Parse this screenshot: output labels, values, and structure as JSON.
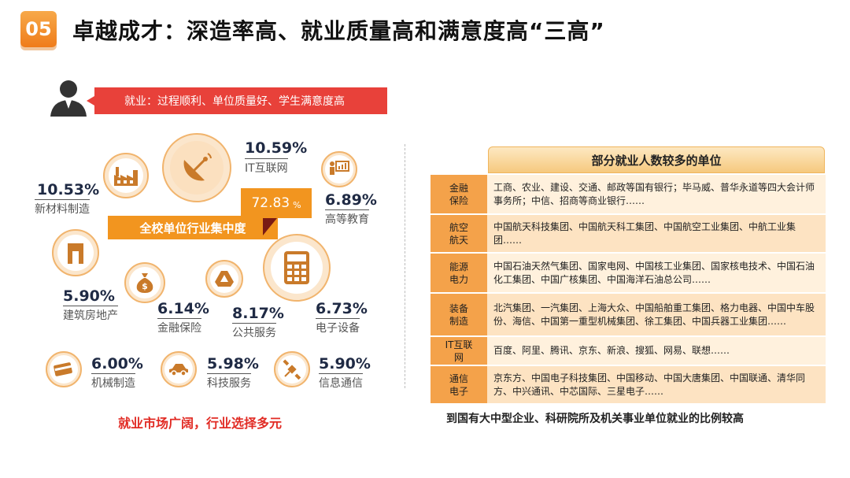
{
  "header": {
    "badge": "05",
    "title": "卓越成才：深造率高、就业质量高和满意度高“三高”"
  },
  "banner": {
    "text": "就业：过程顺利、单位质量好、学生满意度高"
  },
  "industries": [
    {
      "id": "it",
      "percent": "10.59%",
      "label": "IT互联网"
    },
    {
      "id": "materials",
      "percent": "10.53%",
      "label": "新材料制造"
    },
    {
      "id": "education",
      "percent": "6.89%",
      "label": "高等教育"
    },
    {
      "id": "realestate",
      "percent": "5.90%",
      "label": "建筑房地产"
    },
    {
      "id": "finance",
      "percent": "6.14%",
      "label": "金融保险"
    },
    {
      "id": "public",
      "percent": "8.17%",
      "label": "公共服务"
    },
    {
      "id": "electronics",
      "percent": "6.73%",
      "label": "电子设备"
    },
    {
      "id": "machinery",
      "percent": "6.00%",
      "label": "机械制造"
    },
    {
      "id": "techservice",
      "percent": "5.98%",
      "label": "科技服务"
    },
    {
      "id": "telecom",
      "percent": "5.90%",
      "label": "信息通信"
    }
  ],
  "concentration": {
    "label": "全校单位行业集中度",
    "value": "72.83",
    "unit": "%"
  },
  "left_caption": "就业市场广阔，行业选择多元",
  "table": {
    "title": "部分就业人数较多的单位",
    "rows": [
      {
        "category": [
          "金融",
          "保险"
        ],
        "units": "工商、农业、建设、交通、邮政等国有银行；毕马威、普华永道等四大会计师事务所；中信、招商等商业银行……"
      },
      {
        "category": [
          "航空",
          "航天"
        ],
        "units": "中国航天科技集团、中国航天科工集团、中国航空工业集团、中航工业集团……"
      },
      {
        "category": [
          "能源",
          "电力"
        ],
        "units": "中国石油天然气集团、国家电网、中国核工业集团、国家核电技术、中国石油化工集团、中国广核集团、中国海洋石油总公司……"
      },
      {
        "category": [
          "装备",
          "制造"
        ],
        "units": "北汽集团、一汽集团、上海大众、中国船舶重工集团、格力电器、中国中车股份、海信、中国第一重型机械集团、徐工集团、中国兵器工业集团……"
      },
      {
        "category": [
          "IT互联",
          "网"
        ],
        "units": "百度、阿里、腾讯、京东、新浪、搜狐、网易、联想……"
      },
      {
        "category": [
          "通信",
          "电子"
        ],
        "units": "京东方、中国电子科技集团、中国移动、中国大唐集团、中国联通、清华同方、中兴通讯、中芯国际、三星电子……"
      }
    ]
  },
  "right_caption": "到国有大中型企业、科研院所及机关事业单位就业的比例较高",
  "colors": {
    "accent": "#f2951f",
    "banner": "#e8413a",
    "caption_red": "#e12b24"
  },
  "icons": [
    "person-icon",
    "factory-icon",
    "satellite-dish-icon",
    "presentation-icon",
    "building-icon",
    "money-bag-icon",
    "drive-triangle-icon",
    "calculator-icon",
    "credit-card-icon",
    "car-icon",
    "satellite-icon"
  ]
}
